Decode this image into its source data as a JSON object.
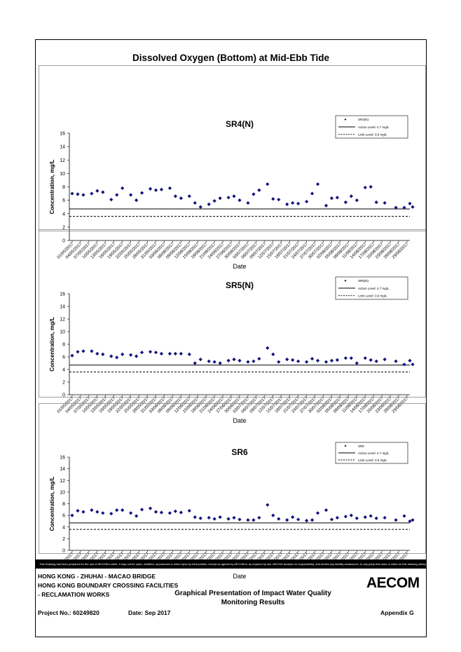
{
  "page": {
    "main_title": "Dissolved Oxygen (Bottom) at Mid-Ebb Tide",
    "notice": "This Drawing has been prepared for the use of AECOM's client. It may not be used, modified, reproduced or relied upon by third parties, except as agreed by AECOM or as required by law. AECOM accepts no responsibility, and denies any liability whatsoever, to any party that uses or relies on this drawing without AECOM's express written consent.",
    "footer": {
      "line1": "HONG KONG - ZHUHAI - MACAO BRIDGE",
      "line2": "HONG KONG BOUNDARY CROSSING FACILITIES",
      "line3": "- RECLAMATION WORKS",
      "center1": "Graphical Presentation of Impact Water Quality",
      "center2": "Monitoring Results",
      "project": "Project No.: 60249820",
      "date": "Date: Sep 2017",
      "appendix": "Appendix G",
      "logo": "AECOM"
    }
  },
  "dates": [
    "01/05/2017",
    "04/05/2017",
    "07/05/2017",
    "10/05/2017",
    "13/05/2017",
    "16/05/2017",
    "19/05/2017",
    "22/05/2017",
    "25/05/2017",
    "28/05/2017",
    "31/05/2017",
    "03/06/2017",
    "06/06/2017",
    "09/06/2017",
    "12/06/2017",
    "15/06/2017",
    "18/06/2017",
    "21/06/2017",
    "24/06/2017",
    "27/06/2017",
    "30/06/2017",
    "03/07/2017",
    "06/07/2017",
    "09/07/2017",
    "12/07/2017",
    "15/07/2017",
    "18/07/2017",
    "21/07/2017",
    "24/07/2017",
    "27/07/2017",
    "30/07/2017",
    "02/08/2017",
    "05/08/2017",
    "08/08/2017",
    "11/08/2017",
    "14/08/2017",
    "17/08/2017",
    "20/08/2017",
    "23/08/2017",
    "26/08/2017",
    "29/08/2017"
  ],
  "chart_data": [
    {
      "type": "scatter",
      "title": "SR4(N)",
      "xlabel": "Date",
      "ylabel": "Concentration, mg/L",
      "ylim": [
        0,
        16
      ],
      "yticks": [
        0,
        2,
        4,
        6,
        8,
        10,
        12,
        14,
        16
      ],
      "legend": {
        "position": "top-right",
        "series": "SR4(N)",
        "action": "Action Level: 4.7 mg/L",
        "limit": "Limit Level: 3.6 mg/L"
      },
      "action_level": 4.7,
      "limit_level": 3.6,
      "series": [
        {
          "name": "SR4(N)",
          "x": [
            "01/05/2017",
            "03/05/2017",
            "05/05/2017",
            "08/05/2017",
            "10/05/2017",
            "12/05/2017",
            "15/05/2017",
            "17/05/2017",
            "19/05/2017",
            "22/05/2017",
            "24/05/2017",
            "26/05/2017",
            "29/05/2017",
            "31/05/2017",
            "02/06/2017",
            "05/06/2017",
            "07/06/2017",
            "09/06/2017",
            "12/06/2017",
            "14/06/2017",
            "16/06/2017",
            "19/06/2017",
            "21/06/2017",
            "23/06/2017",
            "26/06/2017",
            "28/06/2017",
            "30/06/2017",
            "03/07/2017",
            "05/07/2017",
            "07/07/2017",
            "10/07/2017",
            "12/07/2017",
            "14/07/2017",
            "17/07/2017",
            "19/07/2017",
            "21/07/2017",
            "24/07/2017",
            "26/07/2017",
            "28/07/2017",
            "31/07/2017",
            "02/08/2017",
            "04/08/2017",
            "07/08/2017",
            "09/08/2017",
            "11/08/2017",
            "14/08/2017",
            "16/08/2017",
            "18/08/2017",
            "21/08/2017",
            "25/08/2017",
            "28/08/2017",
            "30/08/2017",
            "31/08/2017"
          ],
          "y": [
            7.0,
            6.9,
            6.8,
            7.0,
            7.4,
            7.2,
            6.1,
            6.8,
            7.8,
            6.8,
            6.0,
            7.1,
            7.7,
            7.5,
            7.6,
            7.8,
            6.6,
            6.3,
            6.6,
            5.6,
            5.0,
            5.4,
            5.9,
            6.3,
            6.4,
            6.6,
            6.0,
            5.6,
            6.9,
            7.5,
            8.4,
            6.2,
            6.1,
            5.4,
            5.6,
            5.5,
            5.8,
            7.0,
            8.4,
            5.2,
            6.3,
            6.4,
            5.7,
            6.6,
            6.0,
            7.9,
            8.0,
            5.7,
            5.6,
            4.9,
            4.9,
            5.5,
            5.0
          ]
        }
      ]
    },
    {
      "type": "scatter",
      "title": "SR5(N)",
      "xlabel": "Date",
      "ylabel": "Concentration, mg/L",
      "ylim": [
        0,
        16
      ],
      "yticks": [
        0,
        2,
        4,
        6,
        8,
        10,
        12,
        14,
        16
      ],
      "legend": {
        "position": "top-right",
        "series": "SR5(N)",
        "action": "Action Level: 4.7 mg/L",
        "limit": "Limit Level: 3.6 mg/L"
      },
      "action_level": 4.7,
      "limit_level": 3.6,
      "series": [
        {
          "name": "SR5(N)",
          "x": [
            "01/05/2017",
            "03/05/2017",
            "05/05/2017",
            "08/05/2017",
            "10/05/2017",
            "12/05/2017",
            "15/05/2017",
            "17/05/2017",
            "19/05/2017",
            "22/05/2017",
            "24/05/2017",
            "26/05/2017",
            "29/05/2017",
            "31/05/2017",
            "02/06/2017",
            "05/06/2017",
            "07/06/2017",
            "09/06/2017",
            "12/06/2017",
            "14/06/2017",
            "16/06/2017",
            "19/06/2017",
            "21/06/2017",
            "23/06/2017",
            "26/06/2017",
            "28/06/2017",
            "30/06/2017",
            "03/07/2017",
            "05/07/2017",
            "07/07/2017",
            "10/07/2017",
            "12/07/2017",
            "14/07/2017",
            "17/07/2017",
            "19/07/2017",
            "21/07/2017",
            "24/07/2017",
            "26/07/2017",
            "28/07/2017",
            "31/07/2017",
            "02/08/2017",
            "04/08/2017",
            "07/08/2017",
            "09/08/2017",
            "11/08/2017",
            "14/08/2017",
            "16/08/2017",
            "18/08/2017",
            "21/08/2017",
            "25/08/2017",
            "28/08/2017",
            "30/08/2017",
            "31/08/2017"
          ],
          "y": [
            6.2,
            6.8,
            6.9,
            6.9,
            6.5,
            6.4,
            6.1,
            5.9,
            6.4,
            6.3,
            6.1,
            6.7,
            6.8,
            6.7,
            6.5,
            6.5,
            6.5,
            6.5,
            6.4,
            5.0,
            5.6,
            5.3,
            5.2,
            5.0,
            5.4,
            5.6,
            5.4,
            5.2,
            5.3,
            5.7,
            7.4,
            6.4,
            5.2,
            5.6,
            5.5,
            5.3,
            5.2,
            5.7,
            5.4,
            5.2,
            5.4,
            5.5,
            5.8,
            5.8,
            5.0,
            5.8,
            5.5,
            5.3,
            5.6,
            5.3,
            4.8,
            5.4,
            4.8
          ]
        }
      ]
    },
    {
      "type": "scatter",
      "title": "SR6",
      "xlabel": "Date",
      "ylabel": "Concentration, mg/L",
      "ylim": [
        0,
        16
      ],
      "yticks": [
        0,
        2,
        4,
        6,
        8,
        10,
        12,
        14,
        16
      ],
      "legend": {
        "position": "top-right",
        "series": "SR6",
        "action": "Action Level: 4.7 mg/L",
        "limit": "Limit Level: 3.6 mg/L"
      },
      "action_level": 4.7,
      "limit_level": 3.6,
      "series": [
        {
          "name": "SR6",
          "x": [
            "01/05/2017",
            "03/05/2017",
            "05/05/2017",
            "08/05/2017",
            "10/05/2017",
            "12/05/2017",
            "15/05/2017",
            "17/05/2017",
            "19/05/2017",
            "22/05/2017",
            "24/05/2017",
            "26/05/2017",
            "29/05/2017",
            "31/05/2017",
            "02/06/2017",
            "05/06/2017",
            "07/06/2017",
            "09/06/2017",
            "12/06/2017",
            "14/06/2017",
            "16/06/2017",
            "19/06/2017",
            "21/06/2017",
            "23/06/2017",
            "26/06/2017",
            "28/06/2017",
            "30/06/2017",
            "03/07/2017",
            "05/07/2017",
            "07/07/2017",
            "10/07/2017",
            "12/07/2017",
            "14/07/2017",
            "17/07/2017",
            "19/07/2017",
            "21/07/2017",
            "24/07/2017",
            "26/07/2017",
            "28/07/2017",
            "31/07/2017",
            "02/08/2017",
            "04/08/2017",
            "07/08/2017",
            "09/08/2017",
            "11/08/2017",
            "14/08/2017",
            "16/08/2017",
            "18/08/2017",
            "21/08/2017",
            "25/08/2017",
            "28/08/2017",
            "30/08/2017",
            "31/08/2017"
          ],
          "y": [
            6.0,
            6.8,
            6.6,
            6.9,
            6.6,
            6.4,
            6.3,
            6.9,
            6.9,
            6.4,
            5.9,
            7.0,
            7.2,
            6.6,
            6.5,
            6.4,
            6.7,
            6.5,
            6.8,
            5.7,
            5.5,
            5.6,
            5.4,
            5.7,
            5.4,
            5.6,
            5.3,
            5.2,
            5.2,
            5.6,
            7.8,
            6.0,
            5.4,
            5.2,
            5.7,
            5.3,
            5.1,
            5.2,
            6.4,
            6.9,
            5.3,
            5.6,
            5.8,
            6.0,
            5.5,
            5.7,
            5.9,
            5.5,
            5.6,
            5.2,
            5.9,
            5.0,
            5.2
          ]
        }
      ]
    }
  ]
}
